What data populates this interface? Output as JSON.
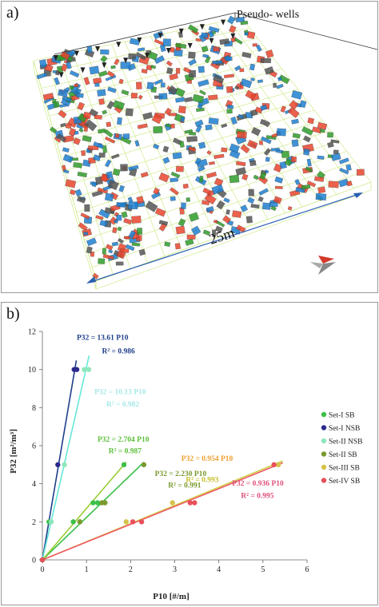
{
  "panel_a": {
    "label": "a)",
    "pseudo_wells_label": "Pseudo- wells",
    "scale_label": "25m",
    "colors": {
      "set1": "#2f9b2a",
      "set2": "#1f7fd0",
      "set3": "#e8452e",
      "grid": "#c8e87a",
      "well": "#222222"
    }
  },
  "panel_b": {
    "label": "b)",
    "chart_data": {
      "type": "scatter",
      "xlabel": "P10 [#/m]",
      "ylabel": "P32 [m²/m³]",
      "xlim": [
        0,
        6
      ],
      "ylim": [
        0,
        12
      ],
      "xticks": [
        0,
        1,
        2,
        3,
        4,
        5,
        6
      ],
      "yticks": [
        0,
        2,
        4,
        6,
        8,
        10,
        12
      ],
      "grid": false,
      "legend_position": "right",
      "series": [
        {
          "name": "Set-I SB",
          "color": "#3cc04a",
          "line_color": "#3cc04a",
          "slope": 2.23,
          "fit_end": 2.3,
          "points": [
            [
              0,
              0
            ],
            [
              0.15,
              2
            ],
            [
              0.7,
              2
            ],
            [
              0.85,
              2
            ],
            [
              1.15,
              3
            ],
            [
              1.25,
              3
            ],
            [
              1.85,
              5
            ]
          ]
        },
        {
          "name": "Set-I NSB",
          "color": "#2a2a8c",
          "line_color": "#1f3f8a",
          "slope": 13.61,
          "fit_end": 0.77,
          "points": [
            [
              0,
              0
            ],
            [
              0.35,
              5
            ],
            [
              0.72,
              10
            ],
            [
              0.78,
              10
            ]
          ]
        },
        {
          "name": "Set-II NSB",
          "color": "#8ee6bc",
          "line_color": "#66e8d6",
          "slope": 10.13,
          "fit_end": 1.06,
          "points": [
            [
              0.2,
              2
            ],
            [
              0.5,
              5
            ],
            [
              0.95,
              10
            ],
            [
              1.05,
              10
            ]
          ]
        },
        {
          "name": "Set-II SB",
          "color": "#7a9a2e",
          "line_color": "#9acd32",
          "slope": 2.704,
          "fit_end": 1.9,
          "points": [
            [
              0,
              0
            ],
            [
              0.85,
              2
            ],
            [
              1.35,
              3
            ],
            [
              1.42,
              3
            ],
            [
              2.3,
              5
            ]
          ]
        },
        {
          "name": "Set-III SB",
          "color": "#d6c24a",
          "line_color": "#cfd24a",
          "slope": 0.954,
          "fit_end": 5.45,
          "points": [
            [
              1.9,
              2
            ],
            [
              2.95,
              3
            ],
            [
              5.35,
              5
            ]
          ]
        },
        {
          "name": "Set-IV SB",
          "color": "#e8505a",
          "line_color": "#f05a64",
          "slope": 0.936,
          "fit_end": 5.45,
          "points": [
            [
              0,
              0
            ],
            [
              2.05,
              2
            ],
            [
              2.25,
              2
            ],
            [
              3.35,
              3
            ],
            [
              3.45,
              3
            ],
            [
              5.25,
              5
            ]
          ]
        }
      ],
      "annotations": [
        {
          "text": "P32 = 13.61 P10",
          "color": "#1f3f8a",
          "x": 0.78,
          "y": 11.55
        },
        {
          "text": "R² = 0.986",
          "color": "#1f3f8a",
          "x": 1.35,
          "y": 10.85
        },
        {
          "text": "P32 = 10.13 P10",
          "color": "#a8e8e8",
          "x": 1.18,
          "y": 8.7
        },
        {
          "text": "R² = 0.982",
          "color": "#a8e8e8",
          "x": 1.45,
          "y": 8.05
        },
        {
          "text": "P32 = 2.704 P10",
          "color": "#5cbf3a",
          "x": 1.25,
          "y": 6.2
        },
        {
          "text": "R² = 0.987",
          "color": "#5cbf3a",
          "x": 1.5,
          "y": 5.6
        },
        {
          "text": "P32 = 0.954 P10",
          "color": "#f0a030",
          "x": 3.15,
          "y": 5.2
        },
        {
          "text": "P32 = 2.230 P10",
          "color": "#7a9a2e",
          "x": 2.55,
          "y": 4.4
        },
        {
          "text": "R² = 0.993",
          "color": "#c8c030",
          "x": 3.25,
          "y": 4.1
        },
        {
          "text": "R² = 0.991",
          "color": "#7a9a2e",
          "x": 2.85,
          "y": 3.8
        },
        {
          "text": "P32 = 0.936 P10",
          "color": "#e0507a",
          "x": 4.3,
          "y": 3.9
        },
        {
          "text": "R² = 0.995",
          "color": "#e0507a",
          "x": 4.5,
          "y": 3.25
        }
      ]
    }
  }
}
